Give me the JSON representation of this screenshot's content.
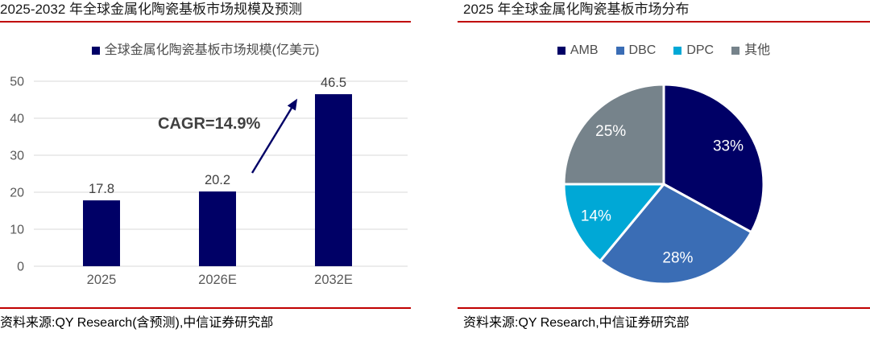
{
  "page": {
    "background": "#FFFFFF",
    "accent_red": "#C00000"
  },
  "style": {
    "grid_color": "#D9D9D9",
    "axis_text_color": "#595959",
    "value_label_color": "#404040",
    "title_color": "#1A1A1A",
    "legend_text_color": "#4D4D4D",
    "source_text_color": "#000000"
  },
  "chart_data": [
    {
      "type": "bar",
      "title": "2025-2032 年全球金属化陶瓷基板市场规模及预测",
      "legend": [
        "全球金属化陶瓷基板市场规模(亿美元)"
      ],
      "legend_position": "top",
      "categories": [
        "2025",
        "2026E",
        "2032E"
      ],
      "values": [
        17.8,
        20.2,
        46.5
      ],
      "value_labels": [
        "17.8",
        "20.2",
        "46.5"
      ],
      "bar_color": "#000066",
      "xlabel": "",
      "ylabel": "",
      "ylim": [
        0,
        50
      ],
      "yticks": [
        0,
        10,
        20,
        30,
        40,
        50
      ],
      "grid": true,
      "annotation": {
        "text": "CAGR=14.9%",
        "text_color": "#404040",
        "arrow_color": "#000066"
      },
      "source": "资料来源:QY Research(含预测),中信证券研究部"
    },
    {
      "type": "pie",
      "title": "2025 年全球金属化陶瓷基板市场分布",
      "legend_position": "top",
      "start_angle": "12-oclock",
      "direction": "clockwise",
      "slices": [
        {
          "label": "AMB",
          "value": 33,
          "display": "33%",
          "color": "#000066"
        },
        {
          "label": "DBC",
          "value": 28,
          "display": "28%",
          "color": "#3A6DB5"
        },
        {
          "label": "DPC",
          "value": 14,
          "display": "14%",
          "color": "#00A8D6"
        },
        {
          "label": "其他",
          "value": 25,
          "display": "25%",
          "color": "#76838B"
        }
      ],
      "label_color": "#FFFFFF",
      "source": "资料来源:QY Research,中信证券研究部"
    }
  ]
}
